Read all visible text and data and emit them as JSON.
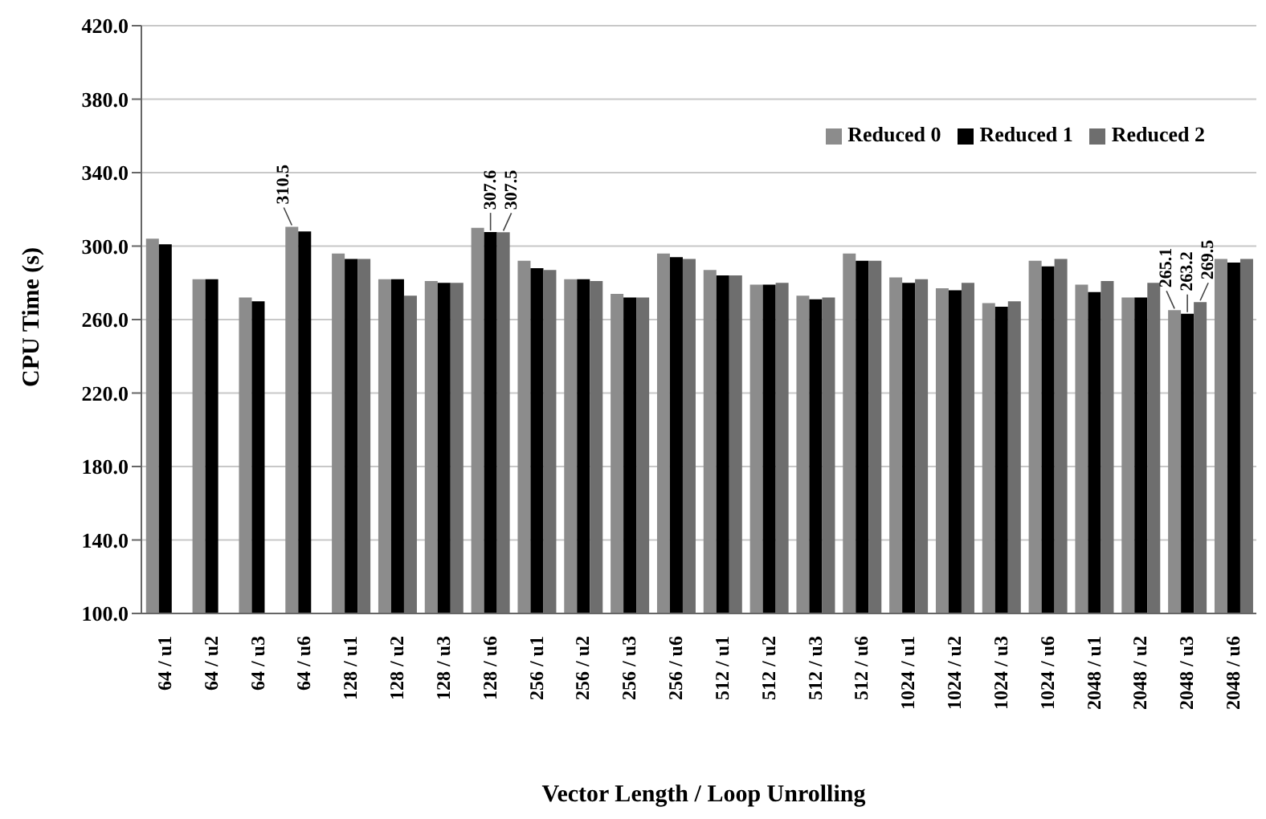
{
  "chart_data": {
    "type": "bar",
    "xlabel": "Vector Length / Loop Unrolling",
    "ylabel": "CPU Time (s)",
    "categories": [
      "64 / u1",
      "64 / u2",
      "64 / u3",
      "64 / u6",
      "128 / u1",
      "128 / u2",
      "128 / u3",
      "128 / u6",
      "256 / u1",
      "256 / u2",
      "256 / u3",
      "256 / u6",
      "512 / u1",
      "512 / u2",
      "512 / u3",
      "512 / u6",
      "1024 / u1",
      "1024 / u2",
      "1024 / u3",
      "1024 / u6",
      "2048 / u1",
      "2048 / u2",
      "2048 / u3",
      "2048 / u6"
    ],
    "series": [
      {
        "name": "Reduced 0",
        "color": "#8c8c8c",
        "values": [
          304,
          282,
          272,
          310.5,
          296,
          282,
          281,
          310,
          292,
          282,
          274,
          296,
          287,
          279,
          273,
          296,
          283,
          277,
          269,
          292,
          279,
          272,
          265.1,
          293
        ],
        "value_labels": [
          null,
          null,
          null,
          "310.5",
          null,
          null,
          null,
          null,
          null,
          null,
          null,
          null,
          null,
          null,
          null,
          null,
          null,
          null,
          null,
          null,
          null,
          null,
          "265.1",
          null
        ]
      },
      {
        "name": "Reduced 1",
        "color": "#000000",
        "values": [
          301,
          282,
          270,
          308,
          293,
          282,
          280,
          307.6,
          288,
          282,
          272,
          294,
          284,
          279,
          271,
          292,
          280,
          276,
          267,
          289,
          275,
          272,
          263.2,
          291
        ],
        "value_labels": [
          null,
          null,
          null,
          null,
          null,
          null,
          null,
          "307.6",
          null,
          null,
          null,
          null,
          null,
          null,
          null,
          null,
          null,
          null,
          null,
          null,
          null,
          null,
          "263.2",
          null
        ]
      },
      {
        "name": "Reduced 2",
        "color": "#6e6e6e",
        "values": [
          null,
          null,
          null,
          null,
          293,
          273,
          280,
          307.5,
          287,
          281,
          272,
          293,
          284,
          280,
          272,
          292,
          282,
          280,
          270,
          293,
          281,
          280,
          269.5,
          293
        ],
        "value_labels": [
          null,
          null,
          null,
          null,
          null,
          null,
          null,
          "307.5",
          null,
          null,
          null,
          null,
          null,
          null,
          null,
          null,
          null,
          null,
          null,
          null,
          null,
          null,
          "269.5",
          null
        ]
      }
    ],
    "ylim": [
      100,
      420
    ],
    "yticks": [
      {
        "value": 100,
        "label": "100.0"
      },
      {
        "value": 140,
        "label": "140.0"
      },
      {
        "value": 180,
        "label": "180.0"
      },
      {
        "value": 220,
        "label": "220.0"
      },
      {
        "value": 260,
        "label": "260.0"
      },
      {
        "value": 300,
        "label": "300.0"
      },
      {
        "value": 340,
        "label": "340.0"
      },
      {
        "value": 380,
        "label": "380.0"
      },
      {
        "value": 420,
        "label": "420.0"
      }
    ],
    "grid": "y",
    "legend": "top right"
  }
}
